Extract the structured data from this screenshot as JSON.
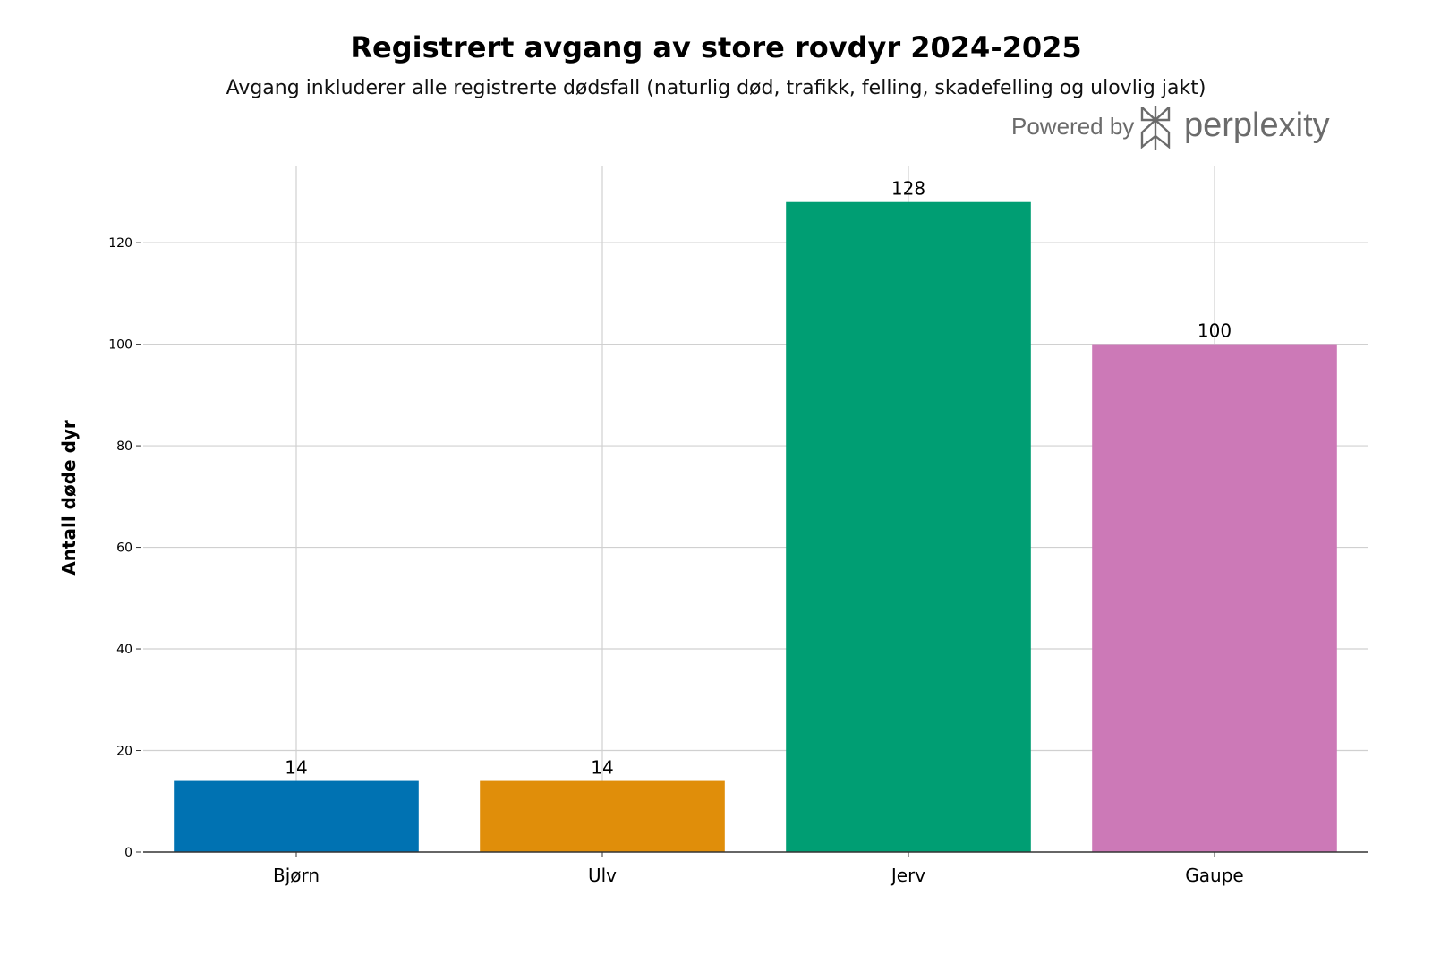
{
  "chart_data": {
    "type": "bar",
    "title": "Registrert avgang av store rovdyr 2024-2025",
    "subtitle": "Avgang inkluderer alle registrerte dødsfall (naturlig død, trafikk, felling, skadefelling og ulovlig jakt)",
    "xlabel": "",
    "ylabel": "Antall døde dyr",
    "categories": [
      "Bjørn",
      "Ulv",
      "Jerv",
      "Gaupe"
    ],
    "values": [
      14,
      14,
      128,
      100
    ],
    "colors": [
      "#0072b2",
      "#e08e0a",
      "#009e73",
      "#cc79b7"
    ],
    "ylim": [
      0,
      135
    ],
    "yticks": [
      0,
      20,
      40,
      60,
      80,
      100,
      120
    ],
    "grid": true,
    "legend": "none"
  },
  "watermark": {
    "text": "Powered by",
    "brand": "perplexity",
    "color": "#6b6b6b",
    "icon": "perplexity-logo-icon"
  }
}
